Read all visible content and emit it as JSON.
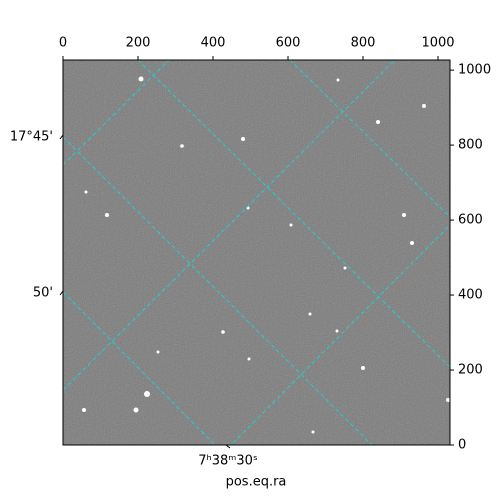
{
  "chart_data": {
    "type": "image",
    "xlabel": "pos.eq.ra",
    "xlim": [
      0,
      1032
    ],
    "ylim": [
      0,
      1027
    ],
    "xticks": [
      0,
      200,
      400,
      600,
      800,
      1000
    ],
    "yticks": [
      0,
      200,
      400,
      600,
      800,
      1000
    ],
    "world_yticks": [
      "17°45'",
      "50'"
    ],
    "world_xticks": [
      "7ʰ38ᵐ30ˢ"
    ],
    "grid_color": "#20d0d0"
  }
}
